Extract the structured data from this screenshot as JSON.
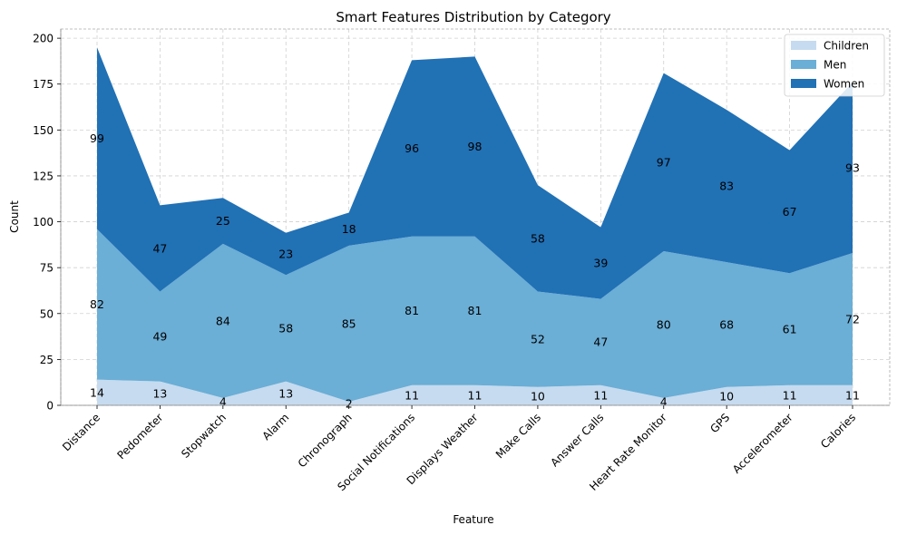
{
  "chart_data": {
    "type": "area",
    "stacked": true,
    "title": "Smart Features Distribution by Category",
    "xlabel": "Feature",
    "ylabel": "Count",
    "ylim": [
      0,
      205
    ],
    "yticks": [
      0,
      25,
      50,
      75,
      100,
      125,
      150,
      175,
      200
    ],
    "grid": true,
    "legend_position": "top-right",
    "categories": [
      "Distance",
      "Pedometer",
      "Stopwatch",
      "Alarm",
      "Chronograph",
      "Social Notifications",
      "Displays Weather",
      "Make Calls",
      "Answer Calls",
      "Heart Rate Monitor",
      "GPS",
      "Accelerometer",
      "Calories"
    ],
    "series": [
      {
        "name": "Children",
        "color": "#c6dbef",
        "values": [
          14,
          13,
          4,
          13,
          2,
          11,
          11,
          10,
          11,
          4,
          10,
          11,
          11
        ]
      },
      {
        "name": "Men",
        "color": "#6baed6",
        "values": [
          82,
          49,
          84,
          58,
          85,
          81,
          81,
          52,
          47,
          80,
          68,
          61,
          72
        ]
      },
      {
        "name": "Women",
        "color": "#2171b5",
        "values": [
          99,
          47,
          25,
          23,
          18,
          96,
          98,
          58,
          39,
          97,
          83,
          67,
          93
        ]
      }
    ]
  }
}
